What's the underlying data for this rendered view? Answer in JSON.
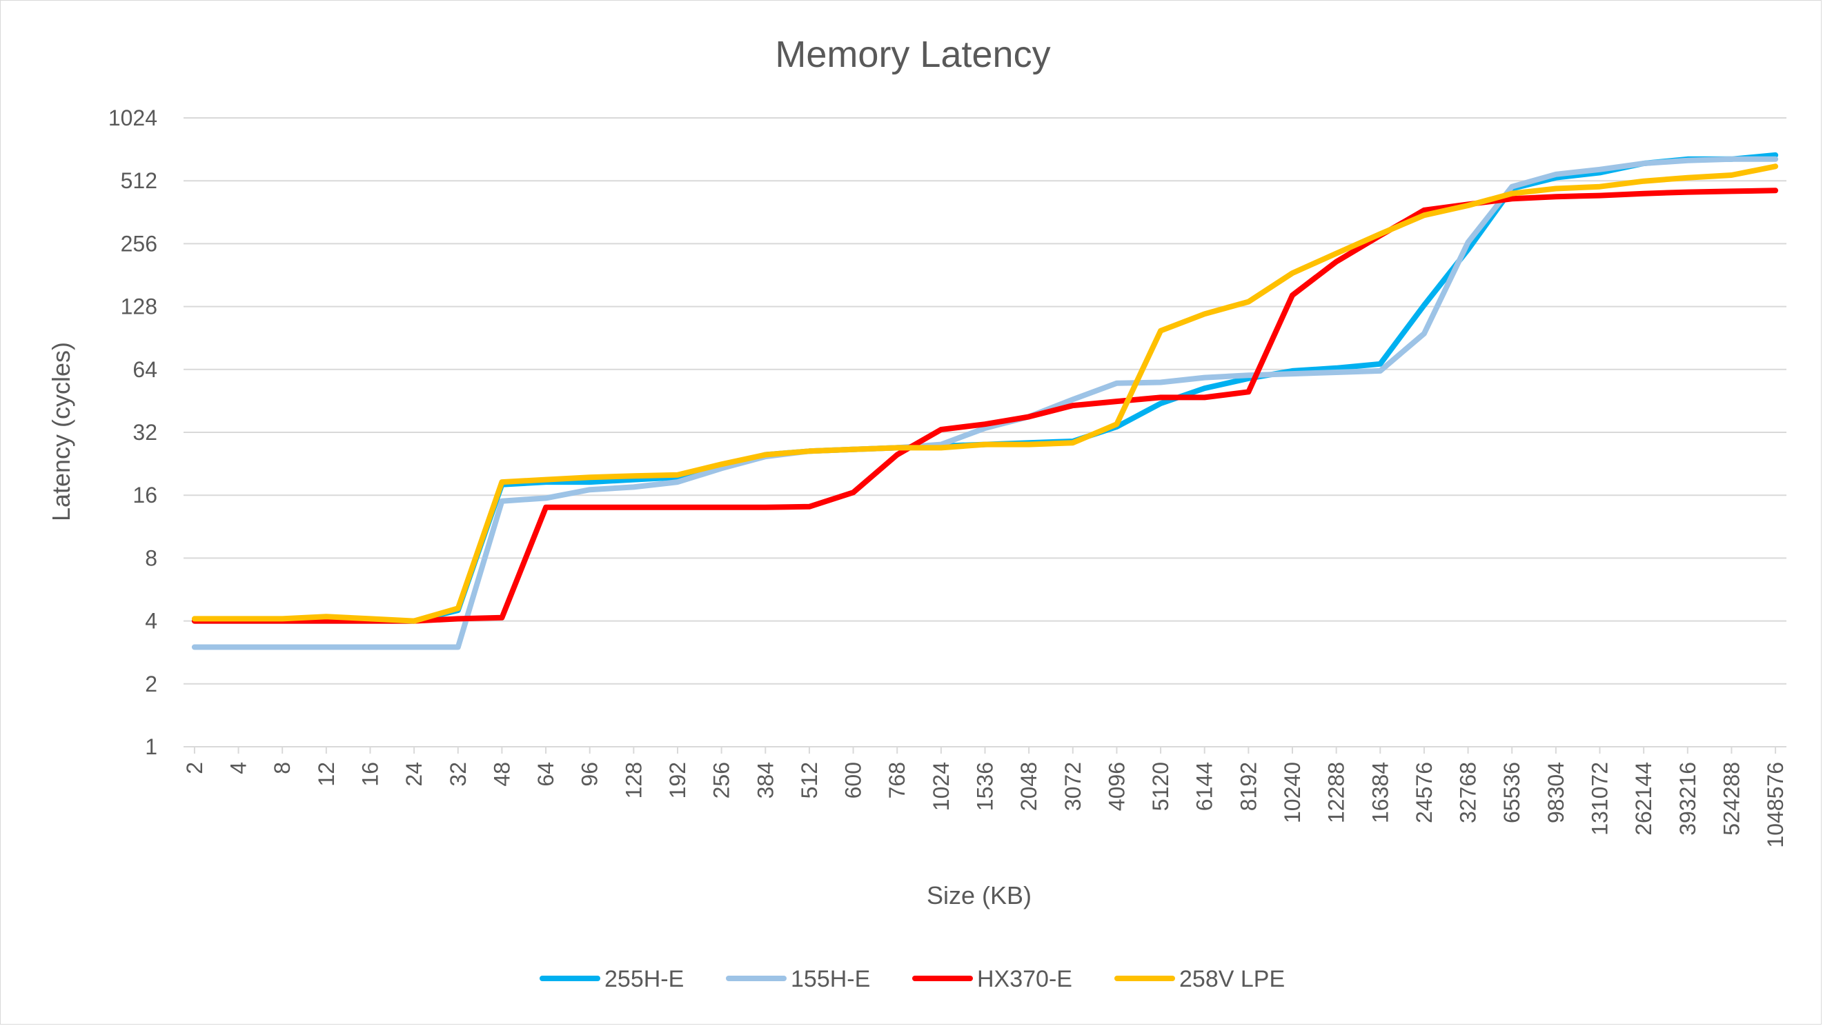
{
  "chart_data": {
    "type": "line",
    "title": "Memory Latency",
    "xlabel": "Size (KB)",
    "ylabel": "Latency (cycles)",
    "y_scale": "log2",
    "ylim": [
      1,
      1024
    ],
    "y_ticks": [
      "1",
      "2",
      "4",
      "8",
      "16",
      "32",
      "64",
      "128",
      "256",
      "512",
      "1024"
    ],
    "grid": true,
    "legend_position": "bottom",
    "categories": [
      "2",
      "4",
      "8",
      "12",
      "16",
      "24",
      "32",
      "48",
      "64",
      "96",
      "128",
      "192",
      "256",
      "384",
      "512",
      "600",
      "768",
      "1024",
      "1536",
      "2048",
      "3072",
      "4096",
      "5120",
      "6144",
      "8192",
      "10240",
      "12288",
      "16384",
      "24576",
      "32768",
      "65536",
      "98304",
      "131072",
      "262144",
      "393216",
      "524288",
      "1048576"
    ],
    "series": [
      {
        "name": "255H-E",
        "color": "#00b0f0",
        "values": [
          4.0,
          4.0,
          4.0,
          4.0,
          4.0,
          4.0,
          4.5,
          18.0,
          18.5,
          18.5,
          19.0,
          19.5,
          22.0,
          25.0,
          26.0,
          26.5,
          27.0,
          27.5,
          28.0,
          28.5,
          29.0,
          34.0,
          44.0,
          52.0,
          58.0,
          63.0,
          65.0,
          68.0,
          130.0,
          240.0,
          470.0,
          530.0,
          560.0,
          620.0,
          650.0,
          650.0,
          680.0
        ]
      },
      {
        "name": "155H-E",
        "color": "#9dc3e6",
        "values": [
          3.0,
          3.0,
          3.0,
          3.0,
          3.0,
          3.0,
          3.0,
          15.0,
          15.5,
          17.0,
          17.5,
          18.5,
          21.5,
          24.5,
          26.0,
          26.5,
          27.0,
          28.0,
          33.5,
          38.0,
          46.0,
          55.0,
          55.5,
          58.5,
          60.0,
          61.0,
          62.0,
          63.0,
          95.0,
          260.0,
          480.0,
          550.0,
          580.0,
          620.0,
          640.0,
          650.0,
          650.0
        ]
      },
      {
        "name": "HX370-E",
        "color": "#ff0000",
        "values": [
          4.0,
          4.0,
          4.0,
          4.0,
          4.0,
          4.0,
          4.1,
          4.15,
          14.0,
          14.0,
          14.0,
          14.0,
          14.0,
          14.0,
          14.1,
          16.5,
          25.0,
          33.0,
          35.0,
          38.0,
          43.0,
          45.0,
          47.0,
          47.0,
          50.0,
          145.0,
          210.0,
          280.0,
          370.0,
          395.0,
          420.0,
          430.0,
          435.0,
          445.0,
          452.0,
          456.0,
          460.0
        ]
      },
      {
        "name": "258V LPE",
        "color": "#ffc000",
        "values": [
          4.1,
          4.1,
          4.1,
          4.2,
          4.1,
          4.0,
          4.6,
          18.5,
          19.0,
          19.5,
          19.8,
          20.0,
          22.5,
          25.0,
          26.0,
          26.5,
          27.0,
          27.0,
          28.0,
          28.0,
          28.5,
          35.0,
          98.0,
          118.0,
          135.0,
          185.0,
          230.0,
          285.0,
          350.0,
          390.0,
          445.0,
          470.0,
          480.0,
          510.0,
          530.0,
          545.0,
          600.0
        ]
      }
    ]
  }
}
